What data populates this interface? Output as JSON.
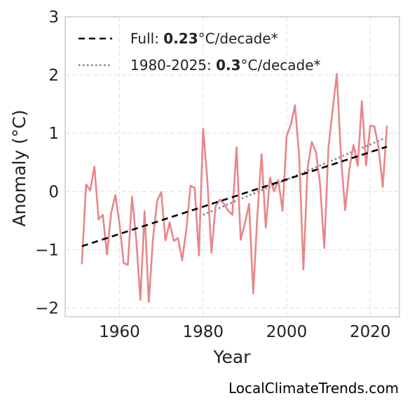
{
  "chart_data": {
    "type": "line",
    "xlabel": "Year",
    "ylabel": "Anomaly (°C)",
    "xlim": [
      1947,
      2027
    ],
    "ylim": [
      -2.15,
      3.0
    ],
    "x_ticks": [
      1960,
      1980,
      2000,
      2020
    ],
    "y_ticks": [
      -2,
      -1,
      0,
      1,
      2,
      3
    ],
    "y_tick_labels": [
      "−2",
      "−1",
      "0",
      "1",
      "2",
      "3"
    ],
    "grid": true,
    "legend_position": "top-left",
    "colors": {
      "series": "#e8868a",
      "full_trend": "#000000",
      "recent_trend": "#808080"
    },
    "series": [
      {
        "x": [
          1951,
          1952,
          1953,
          1954,
          1955,
          1956,
          1957,
          1958,
          1959,
          1960,
          1961,
          1962,
          1963,
          1964,
          1965,
          1966,
          1967,
          1968,
          1969,
          1970,
          1971,
          1972,
          1973,
          1974,
          1975,
          1976,
          1977,
          1978,
          1979,
          1980,
          1981,
          1982,
          1983,
          1984,
          1985,
          1986,
          1987,
          1988,
          1989,
          1990,
          1991,
          1992,
          1993,
          1994,
          1995,
          1996,
          1997,
          1998,
          1999,
          2000,
          2001,
          2002,
          2003,
          2004,
          2005,
          2006,
          2007,
          2008,
          2009,
          2010,
          2011,
          2012,
          2013,
          2014,
          2015,
          2016,
          2017,
          2018,
          2019,
          2020,
          2021,
          2022,
          2023,
          2024
        ],
        "values": [
          -1.25,
          0.12,
          0.02,
          0.43,
          -0.48,
          -0.4,
          -1.08,
          -0.37,
          -0.06,
          -0.55,
          -1.23,
          -1.26,
          -0.09,
          -0.83,
          -1.86,
          -0.34,
          -1.9,
          -0.82,
          -0.16,
          -0.01,
          -0.84,
          -0.53,
          -0.85,
          -0.8,
          -1.18,
          -0.65,
          0.1,
          0.06,
          -1.1,
          1.08,
          0.22,
          -1.05,
          -0.25,
          -0.14,
          -0.21,
          -0.33,
          -0.4,
          0.76,
          -0.83,
          -0.55,
          -0.21,
          -1.75,
          -0.4,
          0.64,
          -0.62,
          0.24,
          0.0,
          0.2,
          -0.33,
          0.95,
          1.15,
          1.48,
          0.6,
          -1.34,
          0.4,
          0.85,
          0.68,
          0.12,
          -0.97,
          0.75,
          1.4,
          2.02,
          0.6,
          -0.32,
          0.38,
          0.8,
          0.44,
          1.55,
          0.45,
          1.13,
          1.12,
          0.75,
          0.08,
          1.13
        ]
      }
    ],
    "trends": [
      {
        "name": "full",
        "x": [
          1951,
          2024
        ],
        "values": [
          -0.94,
          0.77
        ]
      },
      {
        "name": "recent",
        "x": [
          1980,
          2024
        ],
        "values": [
          -0.4,
          0.93
        ]
      }
    ]
  },
  "legend": {
    "full_prefix": "Full: ",
    "full_value": "0.23",
    "full_suffix": "°C/decade*",
    "recent_prefix": "1980-2025: ",
    "recent_value": "0.3",
    "recent_suffix": "°C/decade*"
  },
  "source": "LocalClimateTrends.com"
}
